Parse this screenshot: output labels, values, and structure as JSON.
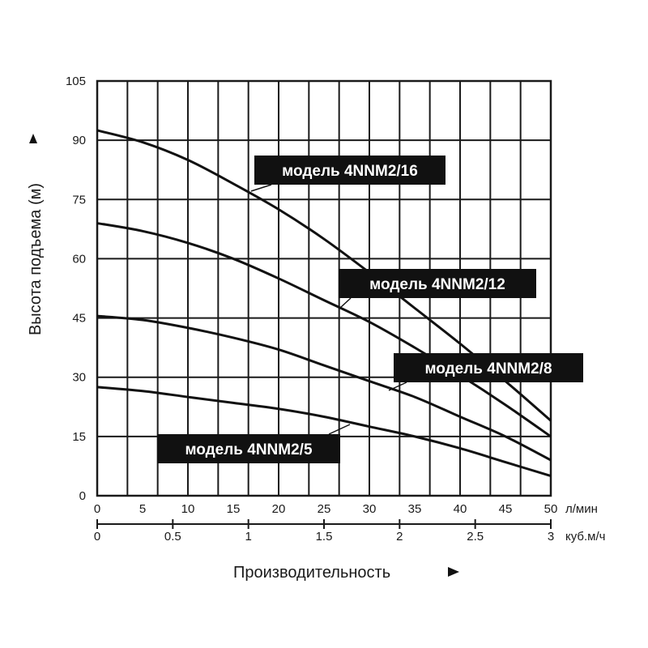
{
  "chart_data": {
    "type": "line",
    "xlabel": "Производительность",
    "ylabel": "Высота подъема (м)",
    "x_unit": "л/мин",
    "x2_unit": "куб.м/ч",
    "xlim": [
      0,
      50
    ],
    "ylim": [
      0,
      105
    ],
    "x_ticks": [
      "0",
      "5",
      "10",
      "15",
      "20",
      "25",
      "30",
      "35",
      "40",
      "45",
      "50"
    ],
    "x2_ticks": [
      "0",
      "0.5",
      "1",
      "1.5",
      "2",
      "2.5",
      "3"
    ],
    "y_ticks": [
      "0",
      "15",
      "30",
      "45",
      "60",
      "75",
      "90",
      "105"
    ],
    "grid": true,
    "series": [
      {
        "name": "модель 4NNM2/16",
        "x": [
          0,
          5,
          10,
          15,
          20,
          25,
          30,
          35,
          40,
          45,
          50
        ],
        "values": [
          92.5,
          89.5,
          85,
          79,
          72.5,
          65,
          56.5,
          47.5,
          38.5,
          29,
          19
        ]
      },
      {
        "name": "модель 4NNM2/12",
        "x": [
          0,
          5,
          10,
          15,
          20,
          25,
          30,
          35,
          40,
          45,
          50
        ],
        "values": [
          69,
          67,
          64,
          60,
          55,
          49.5,
          44,
          37.5,
          30.5,
          23,
          15
        ]
      },
      {
        "name": "модель 4NNM2/8",
        "x": [
          0,
          5,
          10,
          15,
          20,
          25,
          30,
          35,
          40,
          45,
          50
        ],
        "values": [
          45.5,
          44.5,
          42.5,
          40,
          37,
          33,
          29,
          25,
          20,
          15,
          9
        ]
      },
      {
        "name": "модель 4NNM2/5",
        "x": [
          0,
          5,
          10,
          15,
          20,
          25,
          30,
          35,
          40,
          45,
          50
        ],
        "values": [
          27.5,
          26.5,
          25,
          23.5,
          22,
          20,
          17.5,
          15,
          12,
          8.5,
          5
        ]
      }
    ]
  },
  "icons": {
    "y_arrow": "arrow-up-icon",
    "x_arrow": "arrow-right-icon"
  }
}
